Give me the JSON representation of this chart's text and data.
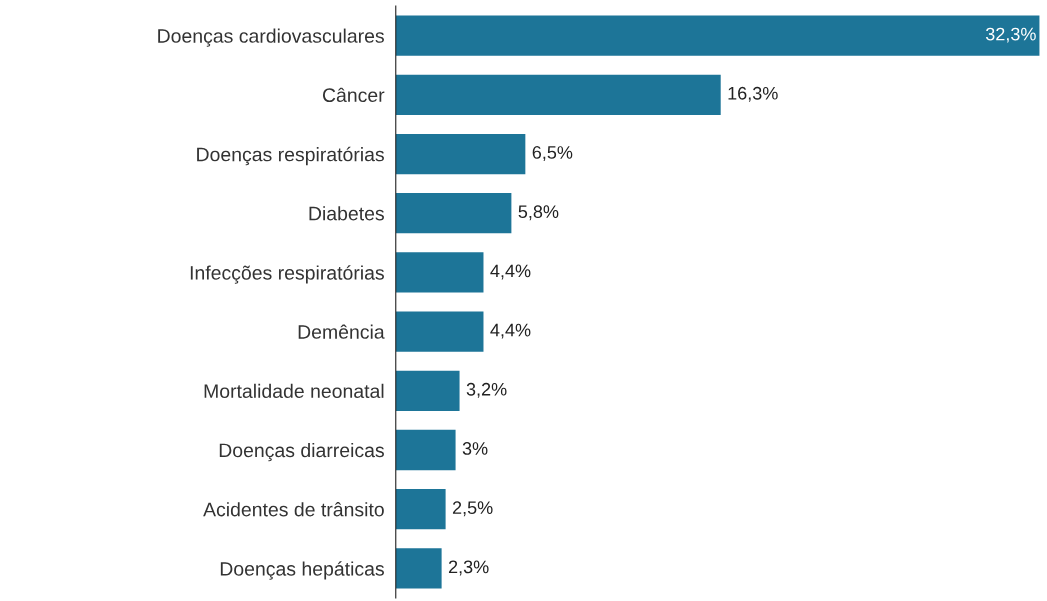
{
  "chart_data": {
    "type": "bar",
    "orientation": "horizontal",
    "categories": [
      "Doenças cardiovasculares",
      "Câncer",
      "Doenças respiratórias",
      "Diabetes",
      "Infecções respiratórias",
      "Demência",
      "Mortalidade neonatal",
      "Doenças diarreicas",
      "Acidentes de trânsito",
      "Doenças hepáticas"
    ],
    "values": [
      32.3,
      16.3,
      6.5,
      5.8,
      4.4,
      4.4,
      3.2,
      3,
      2.5,
      2.3
    ],
    "value_labels": [
      "32,3%",
      "16,3%",
      "6,5%",
      "5,8%",
      "4,4%",
      "4,4%",
      "3,2%",
      "3%",
      "2,5%",
      "2,3%"
    ],
    "color": "#1d7598",
    "grid": false,
    "legend": false,
    "tick_labels": "y"
  }
}
